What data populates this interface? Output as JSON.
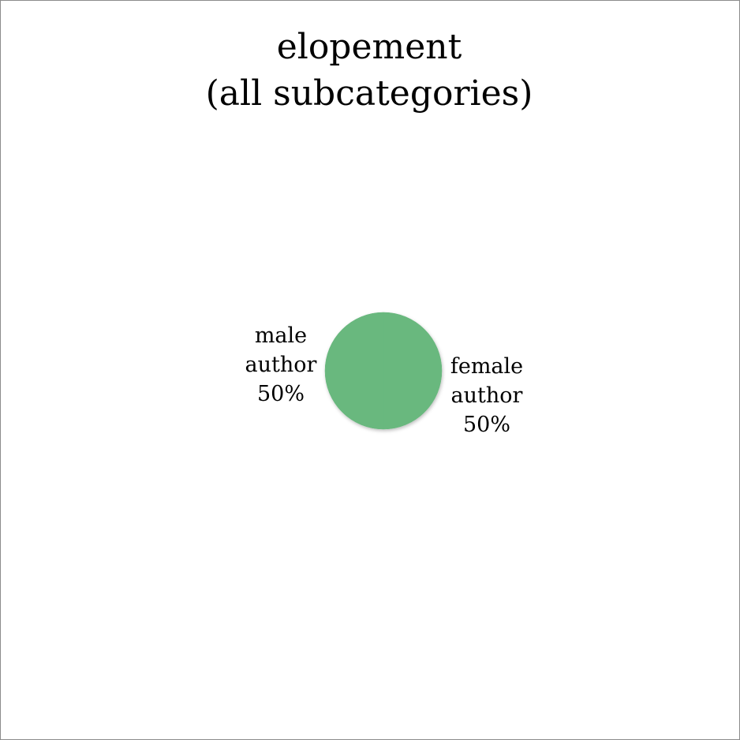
{
  "chart_data": {
    "type": "pie",
    "title_lines": [
      "elopement",
      "(all subcategories)"
    ],
    "slices": [
      {
        "name": "male author",
        "value": 50,
        "percent_label": "50%",
        "label_lines": [
          "male",
          "author",
          "50%"
        ],
        "color": "#69b87e"
      },
      {
        "name": "female author",
        "value": 50,
        "percent_label": "50%",
        "label_lines": [
          "female",
          "author",
          "50%"
        ],
        "color": "#69b87e"
      }
    ],
    "legend": "none"
  }
}
